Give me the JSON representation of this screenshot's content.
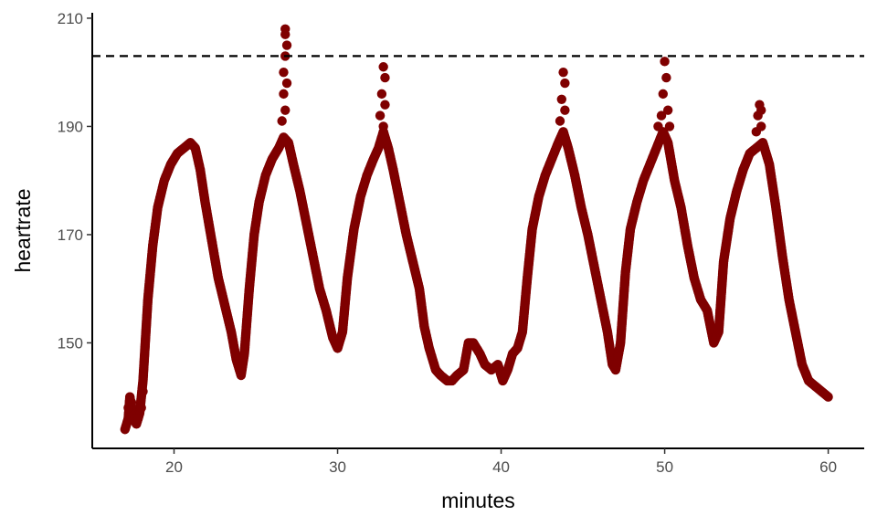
{
  "chart_data": {
    "type": "scatter",
    "title": "",
    "xlabel": "minutes",
    "ylabel": "heartrate",
    "xlim": [
      15,
      62.2
    ],
    "ylim": [
      130.5,
      211
    ],
    "x_ticks": [
      20,
      30,
      40,
      50,
      60
    ],
    "y_ticks": [
      150,
      170,
      190,
      210
    ],
    "grid": false,
    "legend": "none",
    "reference_line": {
      "y": 203,
      "style": "dashed",
      "color": "#000000"
    },
    "point_color": "#7f0000",
    "series": [
      {
        "anchors": [
          [
            17.0,
            134
          ],
          [
            17.2,
            136
          ],
          [
            17.3,
            140
          ],
          [
            17.5,
            136
          ],
          [
            17.7,
            135
          ],
          [
            17.9,
            137
          ],
          [
            18.1,
            143
          ],
          [
            18.4,
            158
          ],
          [
            18.7,
            168
          ],
          [
            19.0,
            175
          ],
          [
            19.4,
            180
          ],
          [
            19.8,
            183
          ],
          [
            20.2,
            185
          ],
          [
            20.6,
            186
          ],
          [
            21.0,
            187
          ],
          [
            21.3,
            186
          ],
          [
            21.6,
            182
          ],
          [
            21.9,
            176
          ],
          [
            22.3,
            169
          ],
          [
            22.7,
            162
          ],
          [
            23.1,
            157
          ],
          [
            23.5,
            152
          ],
          [
            23.8,
            147
          ],
          [
            24.1,
            144
          ],
          [
            24.3,
            148
          ],
          [
            24.6,
            160
          ],
          [
            24.9,
            170
          ],
          [
            25.2,
            176
          ],
          [
            25.6,
            181
          ],
          [
            26.0,
            184
          ],
          [
            26.4,
            186
          ],
          [
            26.7,
            188
          ],
          [
            27.0,
            187
          ],
          [
            27.3,
            183
          ],
          [
            27.7,
            178
          ],
          [
            28.1,
            172
          ],
          [
            28.5,
            166
          ],
          [
            28.9,
            160
          ],
          [
            29.3,
            156
          ],
          [
            29.7,
            151
          ],
          [
            30.0,
            149
          ],
          [
            30.3,
            152
          ],
          [
            30.6,
            162
          ],
          [
            31.0,
            171
          ],
          [
            31.4,
            177
          ],
          [
            31.8,
            181
          ],
          [
            32.2,
            184
          ],
          [
            32.5,
            186
          ],
          [
            32.8,
            189
          ],
          [
            33.1,
            186
          ],
          [
            33.4,
            182
          ],
          [
            33.8,
            176
          ],
          [
            34.2,
            170
          ],
          [
            34.6,
            165
          ],
          [
            35.0,
            160
          ],
          [
            35.3,
            153
          ],
          [
            35.6,
            149
          ],
          [
            36.0,
            145
          ],
          [
            36.3,
            144
          ],
          [
            36.7,
            143
          ],
          [
            37.0,
            143
          ],
          [
            37.3,
            144
          ],
          [
            37.7,
            145
          ],
          [
            38.0,
            150
          ],
          [
            38.3,
            150
          ],
          [
            38.7,
            148
          ],
          [
            39.0,
            146
          ],
          [
            39.4,
            145
          ],
          [
            39.8,
            146
          ],
          [
            40.1,
            143
          ],
          [
            40.4,
            145
          ],
          [
            40.7,
            148
          ],
          [
            41.0,
            149
          ],
          [
            41.3,
            152
          ],
          [
            41.6,
            162
          ],
          [
            41.9,
            171
          ],
          [
            42.3,
            177
          ],
          [
            42.7,
            181
          ],
          [
            43.1,
            184
          ],
          [
            43.5,
            187
          ],
          [
            43.8,
            189
          ],
          [
            44.1,
            186
          ],
          [
            44.5,
            181
          ],
          [
            44.9,
            175
          ],
          [
            45.3,
            170
          ],
          [
            45.7,
            164
          ],
          [
            46.1,
            158
          ],
          [
            46.5,
            152
          ],
          [
            46.8,
            146
          ],
          [
            47.0,
            145
          ],
          [
            47.3,
            150
          ],
          [
            47.6,
            163
          ],
          [
            47.9,
            171
          ],
          [
            48.3,
            176
          ],
          [
            48.7,
            180
          ],
          [
            49.1,
            183
          ],
          [
            49.5,
            186
          ],
          [
            49.9,
            189
          ],
          [
            50.2,
            187
          ],
          [
            50.6,
            180
          ],
          [
            51.0,
            175
          ],
          [
            51.4,
            168
          ],
          [
            51.8,
            162
          ],
          [
            52.2,
            158
          ],
          [
            52.6,
            156
          ],
          [
            53.0,
            150
          ],
          [
            53.3,
            152
          ],
          [
            53.6,
            165
          ],
          [
            54.0,
            173
          ],
          [
            54.4,
            178
          ],
          [
            54.8,
            182
          ],
          [
            55.2,
            185
          ],
          [
            55.6,
            186
          ],
          [
            56.0,
            187
          ],
          [
            56.4,
            183
          ],
          [
            56.8,
            175
          ],
          [
            57.2,
            166
          ],
          [
            57.6,
            158
          ],
          [
            58.0,
            152
          ],
          [
            58.4,
            146
          ],
          [
            58.8,
            143
          ],
          [
            59.2,
            142
          ],
          [
            59.6,
            141
          ],
          [
            60.0,
            140
          ]
        ],
        "spikes": [
          [
            26.8,
            208
          ],
          [
            26.8,
            207
          ],
          [
            26.9,
            205
          ],
          [
            26.8,
            203
          ],
          [
            26.7,
            200
          ],
          [
            26.9,
            198
          ],
          [
            26.7,
            196
          ],
          [
            26.8,
            193
          ],
          [
            26.6,
            191
          ],
          [
            32.8,
            201
          ],
          [
            32.9,
            199
          ],
          [
            32.7,
            196
          ],
          [
            32.9,
            194
          ],
          [
            32.6,
            192
          ],
          [
            32.8,
            190
          ],
          [
            43.8,
            200
          ],
          [
            43.9,
            198
          ],
          [
            43.7,
            195
          ],
          [
            43.9,
            193
          ],
          [
            43.6,
            191
          ],
          [
            50.0,
            202
          ],
          [
            50.1,
            199
          ],
          [
            49.9,
            196
          ],
          [
            50.2,
            193
          ],
          [
            49.8,
            192
          ],
          [
            50.3,
            190
          ],
          [
            49.6,
            190
          ],
          [
            55.8,
            194
          ],
          [
            55.9,
            193
          ],
          [
            55.7,
            192
          ],
          [
            55.9,
            190
          ],
          [
            55.6,
            189
          ],
          [
            17.3,
            140
          ],
          [
            17.4,
            139
          ],
          [
            17.2,
            138
          ],
          [
            17.6,
            136
          ],
          [
            17.8,
            136
          ],
          [
            18.0,
            138
          ],
          [
            18.1,
            141
          ]
        ]
      }
    ]
  }
}
